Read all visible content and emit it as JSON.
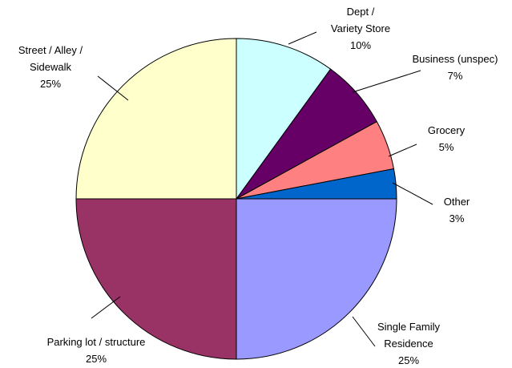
{
  "chart_data": {
    "type": "pie",
    "categories": [
      "Single Family\nResidence",
      "Parking lot / structure",
      "Street /  Alley /\nSidewalk",
      "Dept /\nVariety Store",
      "Business (unspec)",
      "Grocery",
      "Other"
    ],
    "values": [
      25,
      25,
      25,
      10,
      7,
      5,
      3
    ],
    "value_labels": [
      "25%",
      "25%",
      "25%",
      "10%",
      "7%",
      "5%",
      "3%"
    ],
    "colors": [
      "#9999ff",
      "#993366",
      "#ffffcc",
      "#ccffff",
      "#660066",
      "#ff8080",
      "#0066cc"
    ]
  }
}
